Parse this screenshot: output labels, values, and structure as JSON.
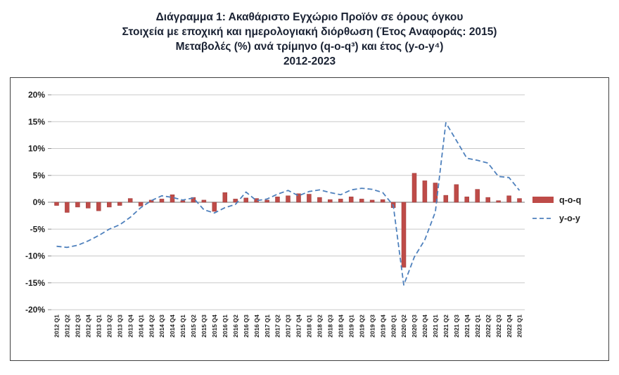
{
  "title": {
    "line1": "Διάγραμμα 1: Ακαθάριστο Εγχώριο Προϊόν σε όρους όγκου",
    "line2": "Στοιχεία με εποχική και ημερολογιακή διόρθωση (Έτος Αναφοράς: 2015)",
    "line3": "Μεταβολές (%) ανά τρίμηνο (q-o-q³) και έτος (y-o-y⁴)",
    "line4": "2012-2023"
  },
  "legend": {
    "qoq_label": "q-o-q",
    "yoy_label": "y-o-y"
  },
  "colors": {
    "bar": "#BE4B48",
    "bar_edge": "#9E3B39",
    "line": "#4F81BD",
    "grid": "#C9C9C9",
    "zero": "#8C8C8C",
    "text": "#1F1F1F"
  },
  "chart_data": {
    "type": "bar+line",
    "title": "Ακαθάριστο Εγχώριο Προϊόν σε όρους όγκου, Μεταβολές (%) ανά τρίμηνο και έτος, 2012-2023",
    "xlabel": "",
    "ylabel": "",
    "ylim": [
      -20,
      20
    ],
    "ytick_step": 5,
    "ytick_format": "percent",
    "grid": true,
    "legend_position": "right",
    "categories": [
      "2012 Q1",
      "2012 Q2",
      "2012 Q3",
      "2012 Q4",
      "2013 Q1",
      "2013 Q2",
      "2013 Q3",
      "2013 Q4",
      "2014 Q1",
      "2014 Q2",
      "2014 Q3",
      "2014 Q4",
      "2015 Q1",
      "2015 Q2",
      "2015 Q3",
      "2015 Q4",
      "2016 Q1",
      "2016 Q2",
      "2016 Q3",
      "2016 Q4",
      "2017 Q1",
      "2017 Q2",
      "2017 Q3",
      "2017 Q4",
      "2018 Q1",
      "2018 Q2",
      "2018 Q3",
      "2018 Q4",
      "2019 Q1",
      "2019 Q2",
      "2019 Q3",
      "2019 Q4",
      "2020 Q1",
      "2020 Q2",
      "2020 Q3",
      "2020 Q4",
      "2021 Q1",
      "2021 Q2",
      "2021 Q3",
      "2021 Q4",
      "2022 Q1",
      "2022 Q2",
      "2022 Q3",
      "2022 Q4",
      "2023 Q1"
    ],
    "series": [
      {
        "name": "q-o-q",
        "type": "bar",
        "values": [
          -0.6,
          -1.9,
          -0.9,
          -1.1,
          -1.6,
          -0.9,
          -0.6,
          0.7,
          -0.7,
          0.4,
          0.6,
          1.4,
          0.3,
          0.9,
          0.4,
          -1.7,
          1.8,
          0.6,
          0.8,
          0.7,
          0.4,
          1.0,
          1.2,
          1.6,
          1.5,
          0.9,
          0.5,
          0.6,
          1.0,
          0.6,
          0.4,
          0.5,
          -1.0,
          -12.1,
          5.4,
          4.0,
          3.6,
          1.3,
          3.3,
          1.0,
          2.4,
          0.9,
          0.3,
          1.2,
          0.7
        ]
      },
      {
        "name": "y-o-y",
        "type": "line",
        "dashed": true,
        "values": [
          -8.2,
          -8.4,
          -8.0,
          -7.2,
          -6.2,
          -5.0,
          -4.2,
          -2.8,
          -1.0,
          0.3,
          1.2,
          0.9,
          0.4,
          0.8,
          -1.4,
          -2.0,
          -1.0,
          -0.4,
          1.9,
          0.3,
          0.6,
          1.5,
          2.2,
          1.2,
          2.0,
          2.3,
          1.8,
          1.4,
          2.3,
          2.6,
          2.4,
          1.8,
          -0.6,
          -15.4,
          -10.2,
          -7.0,
          -1.8,
          14.8,
          11.5,
          8.2,
          7.8,
          7.3,
          4.8,
          4.6,
          2.2
        ]
      }
    ]
  }
}
